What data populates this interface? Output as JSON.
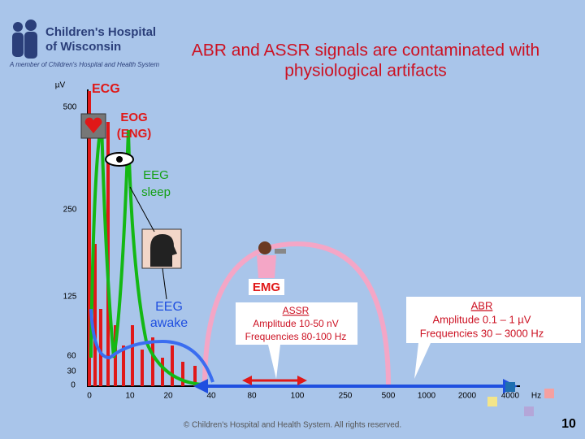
{
  "logo": {
    "name": [
      "Children's Hospital",
      "of Wisconsin"
    ],
    "tagline": "A member of Children's Hospital and Health System"
  },
  "title": [
    "ABR and ASSR signals are contaminated with",
    "physiological artifacts"
  ],
  "y_axis": {
    "unit": "µV",
    "labels": [
      "500",
      "250",
      "125",
      "60",
      "30",
      "0"
    ]
  },
  "x_axis": {
    "labels": [
      "0",
      "10",
      "20",
      "40",
      "80",
      "100",
      "250",
      "500",
      "1000",
      "2000",
      "4000"
    ],
    "unit": "Hz"
  },
  "labels": {
    "ecg": "ECG",
    "eog": [
      "EOG",
      "(ENG)"
    ],
    "eeg_sleep": [
      "EEG",
      "sleep"
    ],
    "eeg_awake": [
      "EEG",
      "awake"
    ],
    "emg": "EMG",
    "assr": {
      "title": "ASSR",
      "lines": [
        "Amplitude 10-50 nV",
        "Frequencies 80-100 Hz"
      ]
    },
    "abr": {
      "title": "ABR",
      "lines": [
        "Amplitude 0.1 – 1 µV",
        "Frequencies 30 – 3000 Hz"
      ]
    }
  },
  "footer": "© Children's Hospital and Health System. All rights reserved.",
  "page_number": "10"
}
